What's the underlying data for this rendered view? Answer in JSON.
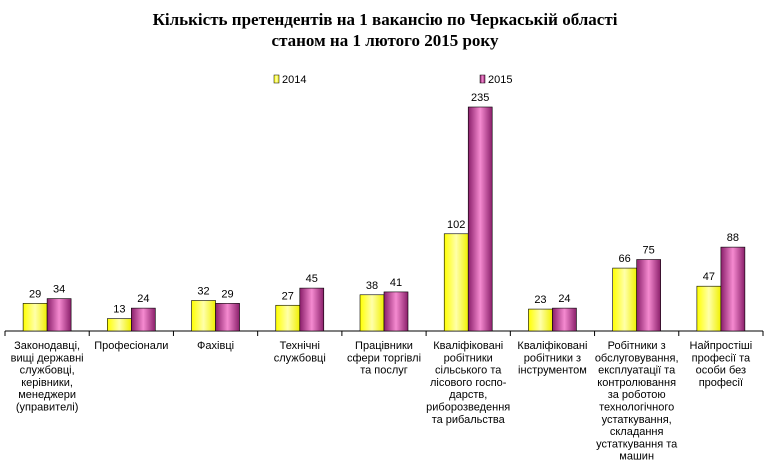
{
  "chart_data": {
    "type": "bar",
    "title": [
      "Кількість претендентів на 1 вакансію по Черкаській області",
      "станом на 1 лютого 2015 року"
    ],
    "categories": [
      [
        "Законодавці,",
        "вищі державні",
        "службовці,",
        "керівники,",
        "менеджери",
        "(управителі)"
      ],
      [
        "Професіонали"
      ],
      [
        "Фахівці"
      ],
      [
        "Технічні",
        "службовці"
      ],
      [
        "Працівники",
        "сфери торгівлі",
        "та послуг"
      ],
      [
        "Кваліфіковані",
        "робітники",
        "сільського та",
        "лісового госпо-",
        "дарств,",
        "риборозведення",
        "та рибальства"
      ],
      [
        "Кваліфіковані",
        "робітники з",
        "інструментом"
      ],
      [
        "Робітники з",
        "обслуговування,",
        "експлуатації та",
        "контролювання",
        "за роботою",
        "технологічного",
        "устаткування,",
        "складання",
        "устаткування та",
        "машин"
      ],
      [
        "Найпростіші",
        "професії та",
        "особи без",
        "професії"
      ]
    ],
    "series": [
      {
        "name": "2014",
        "values": [
          29,
          13,
          32,
          27,
          38,
          102,
          23,
          66,
          47
        ],
        "color": "#ffff00"
      },
      {
        "name": "2015",
        "values": [
          34,
          24,
          29,
          45,
          41,
          235,
          24,
          75,
          88
        ],
        "color": "#a0307a"
      }
    ],
    "ylim": [
      0,
      260
    ],
    "grid": false,
    "legend_position": "top-center"
  }
}
